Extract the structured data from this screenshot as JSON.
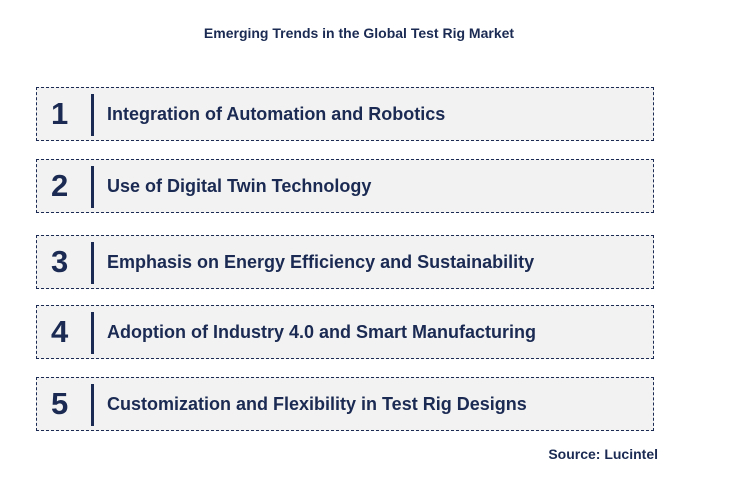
{
  "title": "Emerging Trends in the Global Test Rig Market",
  "trends": [
    {
      "number": "1",
      "label": "Integration of Automation and Robotics"
    },
    {
      "number": "2",
      "label": "Use of Digital Twin Technology"
    },
    {
      "number": "3",
      "label": "Emphasis on Energy Efficiency and Sustainability"
    },
    {
      "number": "4",
      "label": "Adoption of Industry 4.0 and Smart Manufacturing"
    },
    {
      "number": "5",
      "label": "Customization and Flexibility in Test Rig Designs"
    }
  ],
  "source": "Source: Lucintel",
  "colors": {
    "text": "#1a2a52",
    "box_fill": "#f2f2f2"
  }
}
